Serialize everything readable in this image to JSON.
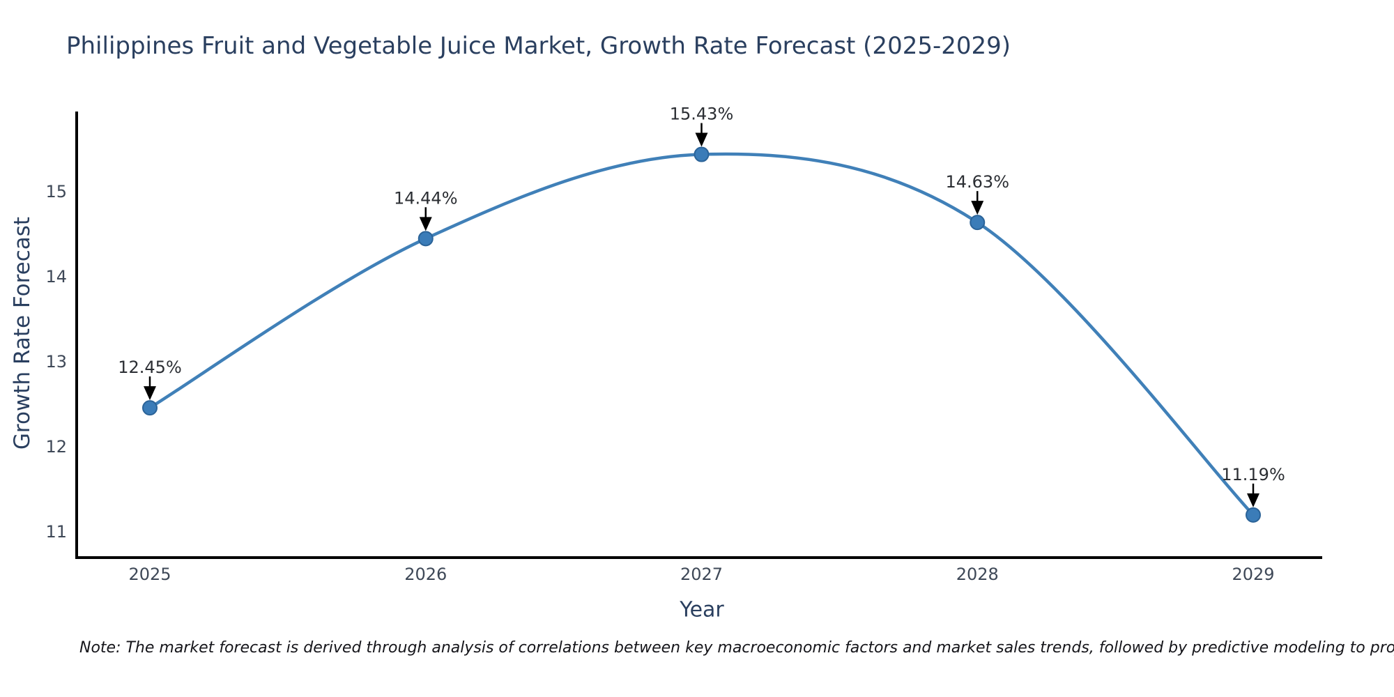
{
  "chart_data": {
    "type": "line",
    "title": "Philippines Fruit and Vegetable Juice Market, Growth Rate Forecast (2025-2029)",
    "categories": [
      "2025",
      "2026",
      "2027",
      "2028",
      "2029"
    ],
    "series": [
      {
        "name": "Growth Rate Forecast",
        "values": [
          12.45,
          14.44,
          15.43,
          14.63,
          11.19
        ]
      }
    ],
    "point_labels": [
      "12.45%",
      "14.44%",
      "15.43%",
      "14.63%",
      "11.19%"
    ],
    "xlabel": "Year",
    "ylabel": "Growth Rate Forecast",
    "yticks": [
      11,
      12,
      13,
      14,
      15
    ],
    "ylim": [
      10.7,
      15.95
    ],
    "line_shape": "spline",
    "markers": true,
    "grid": false,
    "legend": false,
    "note": "Note: The market forecast is derived through analysis of correlations between key macroeconomic factors and market sales trends, followed by predictive modeling to project future sales",
    "colors": {
      "line": "#4080b8",
      "marker_fill": "#3b7cb8",
      "marker_edge": "#2b6398",
      "axis_spine": "#000000",
      "annotation_arrow": "#000000",
      "title_text": "#2a3f5f",
      "tick_text": "#3e4857",
      "annotation_text": "#2b2e33",
      "note_text": "#15151a",
      "background": "#ffffff"
    }
  }
}
